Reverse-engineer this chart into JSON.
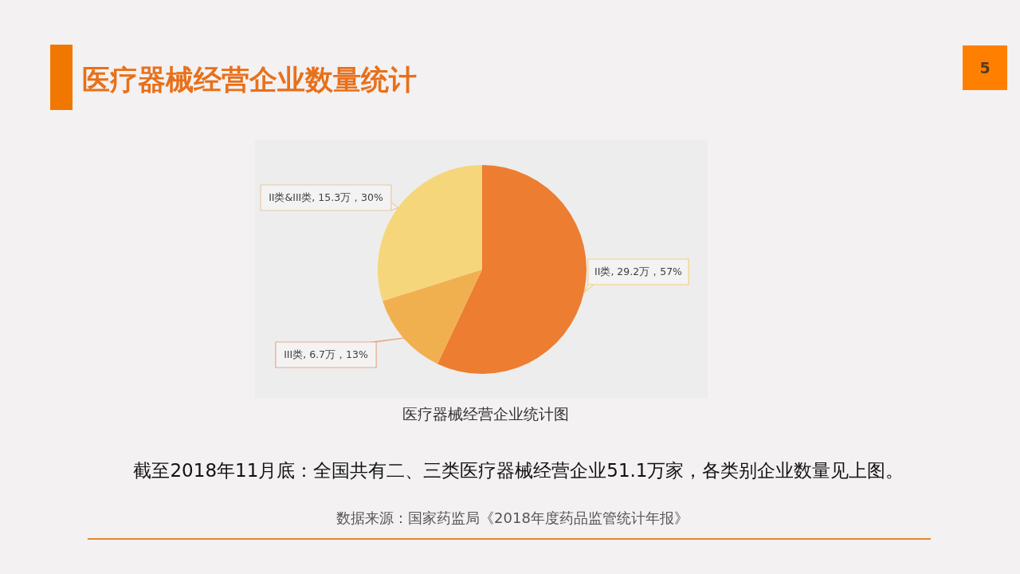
{
  "chart_data": {
    "type": "pie",
    "title": "医疗器械经营企业数量统计",
    "categories": [
      "II类",
      "III类",
      "II类&III类"
    ],
    "values": [
      29.2,
      6.7,
      15.3
    ],
    "value_labels": [
      "29.2万，57%",
      "6.7万，13%",
      "15.3万，30%"
    ],
    "colors": [
      "#ed7d31",
      "#f1b04f",
      "#f6d67b"
    ],
    "annotations": [
      "5",
      "医疗器械经营企业统计图",
      "截至2018年11月底：全国共有二、三类医疗器械经营企业51.1万家，各类别企业数量见上图。",
      "数据来源：国家药监局《2018年度药品监管统计年报》"
    ]
  }
}
